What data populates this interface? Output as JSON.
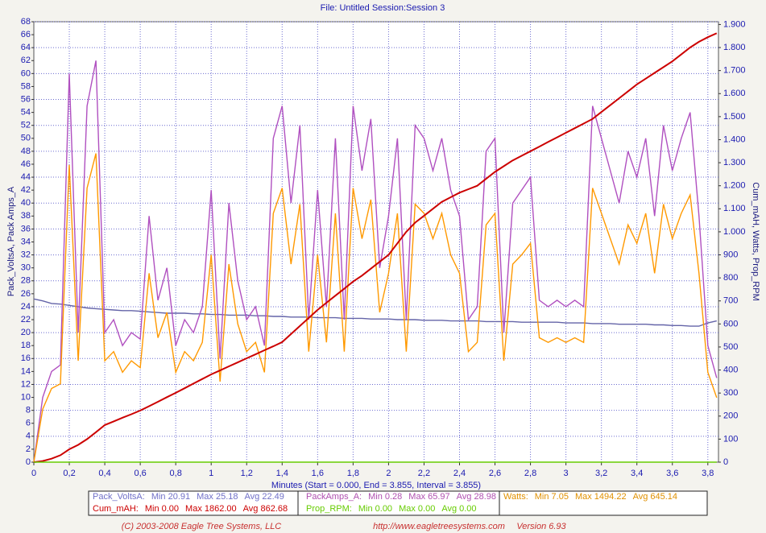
{
  "chart_data": {
    "type": "line",
    "title": "File: Untitled   Session:Session 3",
    "xlabel": "Minutes (Start = 0.000,  End = 3.855,  Interval =  3.855)",
    "ylabel": "Pack_VoltsA, Pack Amps_A",
    "y2label": "Cum_mAH, Watts, Prop_RPM",
    "grid": true,
    "xlim": [
      0,
      3.86
    ],
    "ylim": [
      0,
      68
    ],
    "y2lim": [
      0,
      1912
    ],
    "xticks": [
      0,
      {
        "value": 0.2,
        "label": "0,2"
      },
      {
        "value": 0.4,
        "label": "0,4"
      },
      {
        "value": 0.6,
        "label": "0,6"
      },
      {
        "value": 0.8,
        "label": "0,8"
      },
      1,
      {
        "value": 1.2,
        "label": "1,2"
      },
      {
        "value": 1.4,
        "label": "1,4"
      },
      {
        "value": 1.6,
        "label": "1,6"
      },
      {
        "value": 1.8,
        "label": "1,8"
      },
      2,
      {
        "value": 2.2,
        "label": "2,2"
      },
      {
        "value": 2.4,
        "label": "2,4"
      },
      {
        "value": 2.6,
        "label": "2,6"
      },
      {
        "value": 2.8,
        "label": "2,8"
      },
      3,
      {
        "value": 3.2,
        "label": "3,2"
      },
      {
        "value": 3.4,
        "label": "3,4"
      },
      {
        "value": 3.6,
        "label": "3,6"
      },
      {
        "value": 3.8,
        "label": "3,8"
      }
    ],
    "yticks": [
      0,
      2,
      4,
      6,
      8,
      10,
      12,
      14,
      16,
      18,
      20,
      22,
      24,
      26,
      28,
      30,
      32,
      34,
      36,
      38,
      40,
      42,
      44,
      46,
      48,
      50,
      52,
      54,
      56,
      58,
      60,
      62,
      64,
      66,
      68
    ],
    "y2ticks": [
      0,
      100,
      200,
      300,
      400,
      500,
      600,
      700,
      800,
      900,
      {
        "value": 1000,
        "label": "1.000"
      },
      {
        "value": 1100,
        "label": "1.100"
      },
      {
        "value": 1200,
        "label": "1.200"
      },
      {
        "value": 1300,
        "label": "1.300"
      },
      {
        "value": 1400,
        "label": "1.400"
      },
      {
        "value": 1500,
        "label": "1.500"
      },
      {
        "value": 1600,
        "label": "1.600"
      },
      {
        "value": 1700,
        "label": "1.700"
      },
      {
        "value": 1800,
        "label": "1.800"
      },
      {
        "value": 1900,
        "label": "1.900"
      }
    ],
    "x": [
      0,
      0.05,
      0.1,
      0.15,
      0.2,
      0.25,
      0.3,
      0.35,
      0.4,
      0.45,
      0.5,
      0.55,
      0.6,
      0.65,
      0.7,
      0.75,
      0.8,
      0.85,
      0.9,
      0.95,
      1,
      1.05,
      1.1,
      1.15,
      1.2,
      1.25,
      1.3,
      1.35,
      1.4,
      1.45,
      1.5,
      1.55,
      1.6,
      1.65,
      1.7,
      1.75,
      1.8,
      1.85,
      1.9,
      1.95,
      2,
      2.05,
      2.1,
      2.15,
      2.2,
      2.25,
      2.3,
      2.35,
      2.4,
      2.45,
      2.5,
      2.55,
      2.6,
      2.65,
      2.7,
      2.75,
      2.8,
      2.85,
      2.9,
      2.95,
      3,
      3.05,
      3.1,
      3.15,
      3.2,
      3.25,
      3.3,
      3.35,
      3.4,
      3.45,
      3.5,
      3.55,
      3.6,
      3.65,
      3.7,
      3.75,
      3.8,
      3.85
    ],
    "series": [
      {
        "name": "Pack_VoltsA:",
        "color": "#6464a8",
        "legend_color": "#7070c8",
        "stats": [
          "Min 20.91",
          "Max 25.18",
          "Avg 22.49"
        ],
        "values": [
          25.2,
          24.9,
          24.5,
          24.4,
          24.2,
          24.0,
          23.8,
          23.7,
          23.6,
          23.5,
          23.4,
          23.4,
          23.3,
          23.2,
          23.1,
          23.0,
          23.0,
          23.0,
          22.9,
          22.9,
          22.8,
          22.8,
          22.7,
          22.7,
          22.7,
          22.6,
          22.6,
          22.5,
          22.5,
          22.4,
          22.4,
          22.4,
          22.3,
          22.3,
          22.3,
          22.2,
          22.2,
          22.2,
          22.1,
          22.1,
          22.1,
          22.0,
          22.0,
          22.0,
          21.9,
          21.9,
          21.9,
          21.8,
          21.8,
          21.8,
          21.8,
          21.7,
          21.7,
          21.7,
          21.7,
          21.6,
          21.6,
          21.6,
          21.6,
          21.6,
          21.5,
          21.5,
          21.5,
          21.4,
          21.4,
          21.4,
          21.3,
          21.3,
          21.3,
          21.3,
          21.2,
          21.2,
          21.1,
          21.1,
          21.0,
          21.0,
          21.5,
          21.8
        ]
      },
      {
        "name": "PackAmps_A:",
        "color": "#b050c0",
        "legend_color": "#b050b0",
        "stats": [
          "Min 0.28",
          "Max 65.97",
          "Avg 28.98"
        ],
        "values": [
          0,
          10,
          14,
          15,
          60,
          20,
          55,
          62,
          20,
          22,
          18,
          20,
          19,
          38,
          25,
          30,
          18,
          22,
          20,
          24,
          42,
          16,
          40,
          28,
          22,
          24,
          18,
          50,
          55,
          40,
          52,
          22,
          42,
          24,
          50,
          22,
          55,
          45,
          53,
          30,
          38,
          50,
          22,
          52,
          50,
          45,
          50,
          42,
          38,
          22,
          24,
          48,
          50,
          20,
          40,
          42,
          44,
          25,
          24,
          25,
          24,
          25,
          24,
          55,
          50,
          45,
          40,
          48,
          44,
          50,
          38,
          52,
          45,
          50,
          54,
          38,
          18,
          13
        ]
      },
      {
        "name": "Watts:",
        "color": "#ff9900",
        "legend_color": "#e09000",
        "axis": "y2",
        "stats": [
          "Min 7.05",
          "Max 1494.22",
          "Avg 645.14"
        ],
        "values": [
          0,
          230,
          320,
          340,
          1290,
          440,
          1190,
          1340,
          440,
          480,
          390,
          440,
          410,
          820,
          540,
          650,
          390,
          480,
          440,
          520,
          900,
          350,
          860,
          600,
          480,
          520,
          390,
          1080,
          1190,
          860,
          1120,
          480,
          900,
          520,
          1080,
          480,
          1190,
          970,
          1140,
          650,
          820,
          1080,
          480,
          1120,
          1080,
          970,
          1080,
          900,
          820,
          480,
          520,
          1030,
          1080,
          440,
          860,
          900,
          950,
          540,
          520,
          540,
          520,
          540,
          520,
          1190,
          1080,
          970,
          860,
          1030,
          950,
          1080,
          820,
          1120,
          970,
          1080,
          1160,
          820,
          390,
          280
        ]
      },
      {
        "name": "Cum_mAH:",
        "color": "#cc0000",
        "legend_color": "#cc0000",
        "axis": "y2",
        "stats": [
          "Min 0.00",
          "Max 1862.00",
          "Avg 862.68"
        ],
        "values": [
          0,
          5,
          15,
          30,
          56,
          75,
          100,
          130,
          161,
          177,
          193,
          208,
          224,
          243,
          262,
          282,
          301,
          321,
          341,
          361,
          381,
          398,
          416,
          433,
          451,
          468,
          486,
          503,
          521,
          556,
          591,
          626,
          661,
          692,
          723,
          753,
          784,
          810,
          840,
          870,
          900,
          950,
          1000,
          1040,
          1070,
          1100,
          1130,
          1150,
          1170,
          1185,
          1200,
          1230,
          1260,
          1285,
          1310,
          1330,
          1350,
          1370,
          1390,
          1410,
          1430,
          1450,
          1470,
          1490,
          1520,
          1550,
          1580,
          1610,
          1640,
          1665,
          1690,
          1715,
          1740,
          1770,
          1800,
          1825,
          1845,
          1862
        ]
      },
      {
        "name": "Prop_RPM:",
        "color": "#66cc00",
        "legend_color": "#66cc00",
        "axis": "y2",
        "stats": [
          "Min 0.00",
          "Max 0.00",
          "Avg 0.00"
        ],
        "values": [
          0,
          0,
          0,
          0,
          0,
          0,
          0,
          0,
          0,
          0,
          0,
          0,
          0,
          0,
          0,
          0,
          0,
          0,
          0,
          0,
          0,
          0,
          0,
          0,
          0,
          0,
          0,
          0,
          0,
          0,
          0,
          0,
          0,
          0,
          0,
          0,
          0,
          0,
          0,
          0,
          0,
          0,
          0,
          0,
          0,
          0,
          0,
          0,
          0,
          0,
          0,
          0,
          0,
          0,
          0,
          0,
          0,
          0,
          0,
          0,
          0,
          0,
          0,
          0,
          0,
          0,
          0,
          0,
          0,
          0,
          0,
          0,
          0,
          0,
          0,
          0,
          0,
          0
        ]
      }
    ]
  },
  "footer": [
    "(C) 2003-2008 Eagle Tree Systems, LLC",
    "http://www.eagletreesystems.com",
    "Version 6.93"
  ]
}
